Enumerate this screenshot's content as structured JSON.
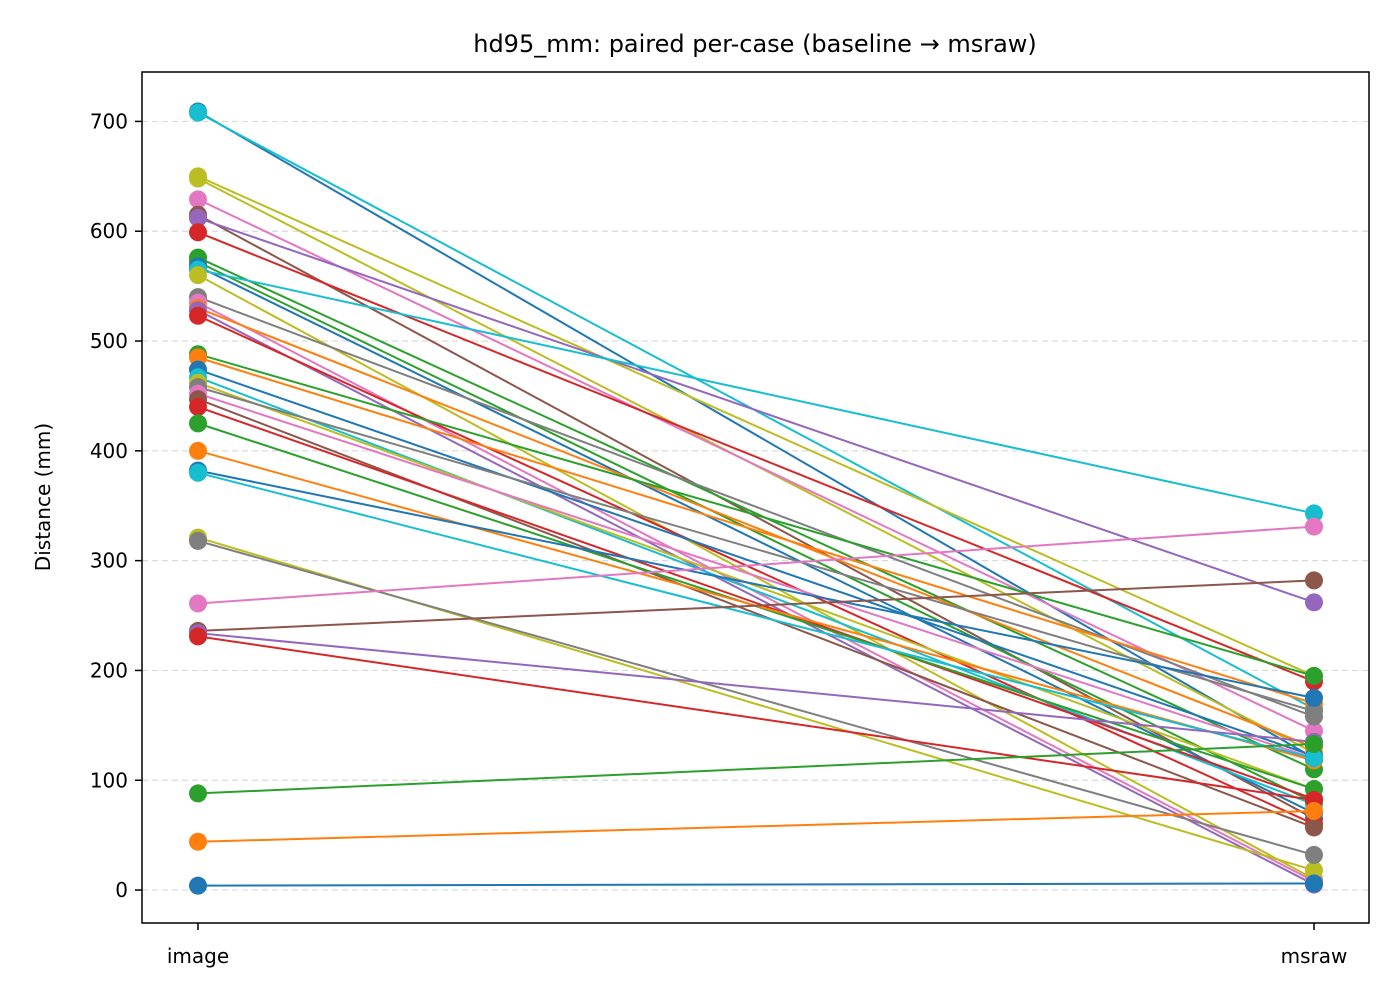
{
  "chart_data": {
    "type": "line",
    "title": "hd95_mm: paired per-case (baseline → msraw)",
    "xlabel": "",
    "ylabel": "Distance (mm)",
    "categories": [
      "image",
      "msraw"
    ],
    "ylim": [
      -30,
      745
    ],
    "yticks": [
      0,
      100,
      200,
      300,
      400,
      500,
      600,
      700
    ],
    "grid": "y-dashed",
    "legend": "none",
    "series": [
      {
        "color": "#1f77b4",
        "values": [
          709,
          120
        ]
      },
      {
        "color": "#17becf",
        "values": [
          708,
          165
        ]
      },
      {
        "color": "#bcbd22",
        "values": [
          650,
          195
        ]
      },
      {
        "color": "#bcbd22",
        "values": [
          648,
          125
        ]
      },
      {
        "color": "#e377c2",
        "values": [
          629,
          145
        ]
      },
      {
        "color": "#8c564b",
        "values": [
          615,
          65
        ]
      },
      {
        "color": "#9467bd",
        "values": [
          612,
          262
        ]
      },
      {
        "color": "#d62728",
        "values": [
          599,
          190
        ]
      },
      {
        "color": "#2ca02c",
        "values": [
          576,
          110
        ]
      },
      {
        "color": "#2ca02c",
        "values": [
          572,
          80
        ]
      },
      {
        "color": "#1f77b4",
        "values": [
          568,
          70
        ]
      },
      {
        "color": "#17becf",
        "values": [
          565,
          343
        ]
      },
      {
        "color": "#bcbd22",
        "values": [
          560,
          10
        ]
      },
      {
        "color": "#7f7f7f",
        "values": [
          540,
          158
        ]
      },
      {
        "color": "#e377c2",
        "values": [
          535,
          8
        ]
      },
      {
        "color": "#ff7f0e",
        "values": [
          530,
          130
        ]
      },
      {
        "color": "#9467bd",
        "values": [
          528,
          5
        ]
      },
      {
        "color": "#d62728",
        "values": [
          523,
          60
        ]
      },
      {
        "color": "#2ca02c",
        "values": [
          488,
          195
        ]
      },
      {
        "color": "#ff7f0e",
        "values": [
          485,
          170
        ]
      },
      {
        "color": "#1f77b4",
        "values": [
          474,
          122
        ]
      },
      {
        "color": "#17becf",
        "values": [
          467,
          78
        ]
      },
      {
        "color": "#bcbd22",
        "values": [
          462,
          92
        ]
      },
      {
        "color": "#7f7f7f",
        "values": [
          458,
          163
        ]
      },
      {
        "color": "#e377c2",
        "values": [
          452,
          120
        ]
      },
      {
        "color": "#8c564b",
        "values": [
          447,
          57
        ]
      },
      {
        "color": "#d62728",
        "values": [
          440,
          83
        ]
      },
      {
        "color": "#2ca02c",
        "values": [
          425,
          92
        ]
      },
      {
        "color": "#ff7f0e",
        "values": [
          400,
          118
        ]
      },
      {
        "color": "#1f77b4",
        "values": [
          382,
          175
        ]
      },
      {
        "color": "#17becf",
        "values": [
          380,
          120
        ]
      },
      {
        "color": "#bcbd22",
        "values": [
          321,
          18
        ]
      },
      {
        "color": "#7f7f7f",
        "values": [
          318,
          32
        ]
      },
      {
        "color": "#e377c2",
        "values": [
          261,
          331
        ]
      },
      {
        "color": "#8c564b",
        "values": [
          236,
          282
        ]
      },
      {
        "color": "#9467bd",
        "values": [
          234,
          135
        ]
      },
      {
        "color": "#d62728",
        "values": [
          231,
          82
        ]
      },
      {
        "color": "#2ca02c",
        "values": [
          88,
          133
        ]
      },
      {
        "color": "#ff7f0e",
        "values": [
          44,
          72
        ]
      },
      {
        "color": "#1f77b4",
        "values": [
          4,
          6
        ]
      }
    ]
  }
}
